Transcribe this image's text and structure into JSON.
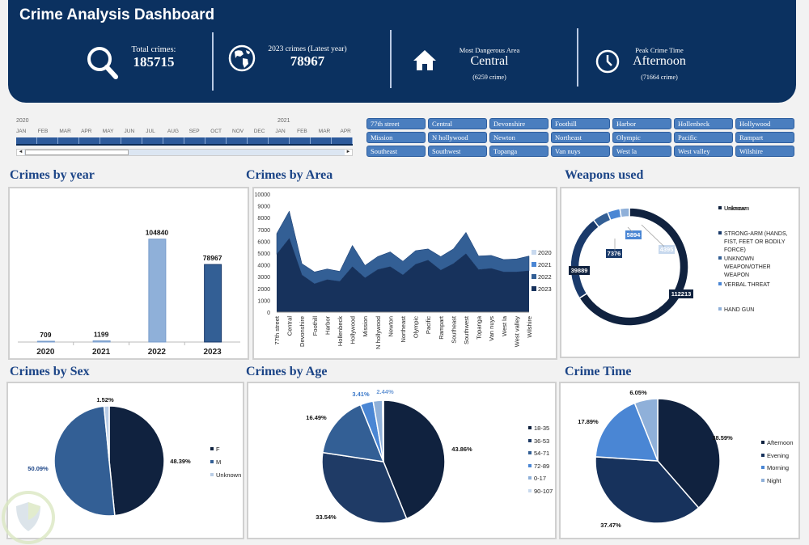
{
  "header": {
    "title": "Crime Analysis Dashboard",
    "kpis": [
      {
        "icon": "search-icon",
        "label": "Total crimes:",
        "value": "185715"
      },
      {
        "icon": "globe-icon",
        "label": "2023 crimes (Latest year)",
        "value": "78967"
      },
      {
        "icon": "home-icon",
        "label": "Most Dangerous Area",
        "value": "Central",
        "sub": "(6259 crime)"
      },
      {
        "icon": "clock-icon",
        "label": "Peak Crime Time",
        "value": "Afternoon",
        "sub": "(71664 crime)"
      }
    ]
  },
  "timeline": {
    "years": [
      "2020",
      "2021"
    ],
    "months": [
      "JAN",
      "FEB",
      "MAR",
      "APR",
      "MAY",
      "JUN",
      "JUL",
      "AUG",
      "SEP",
      "OCT",
      "NOV",
      "DEC",
      "JAN",
      "FEB",
      "MAR",
      "APR"
    ],
    "scroll_left": "◄",
    "scroll_right": "►"
  },
  "area_slicer": {
    "items": [
      "77th street",
      "Central",
      "Devonshire",
      "Foothill",
      "Harbor",
      "Hollenbeck",
      "Hollywood",
      "Mission",
      "N hollywood",
      "Newton",
      "Northeast",
      "Olympic",
      "Pacific",
      "Rampart",
      "Southeast",
      "Southwest",
      "Topanga",
      "Van nuys",
      "West la",
      "West valley",
      "Wilshire"
    ]
  },
  "sections": {
    "year": "Crimes by year",
    "area": "Crimes by Area",
    "weapons": "Weapons used",
    "sex": "Crimes by Sex",
    "age": "Crimes by Age",
    "time": "Crime Time"
  },
  "colors": {
    "header_bg": "#0b3160",
    "title": "#1c4587",
    "darkest": "#10223f",
    "dark": "#1a3a6b",
    "mid": "#335f95",
    "blue": "#4a86d4",
    "light": "#8fb0d9",
    "lighter": "#c8d9ee"
  },
  "chart_data": [
    {
      "id": "year",
      "type": "bar",
      "title": "Crimes by year",
      "categories": [
        "2020",
        "2021",
        "2022",
        "2023"
      ],
      "values": [
        709,
        1199,
        104840,
        78967
      ],
      "colors": [
        "#8fb0d9",
        "#8fb0d9",
        "#8fb0d9",
        "#335f95"
      ],
      "ylim": [
        0,
        140000
      ]
    },
    {
      "id": "area",
      "type": "area",
      "title": "Crimes by Area",
      "stacked": true,
      "categories": [
        "77th street",
        "Central",
        "Devonshire",
        "Foothill",
        "Harbor",
        "Hollenbeck",
        "Hollywood",
        "Mission",
        "N hollywood",
        "Newton",
        "Northeast",
        "Olympic",
        "Pacific",
        "Rampart",
        "Southeast",
        "Southwest",
        "Topanga",
        "Van nuys",
        "West la",
        "West valley",
        "Wilshire"
      ],
      "yticks": [
        0,
        1000,
        2000,
        3000,
        4000,
        5000,
        6000,
        7000,
        8000,
        9000,
        10000
      ],
      "ylim": [
        0,
        10000
      ],
      "series": [
        {
          "name": "2023",
          "color": "#17325c",
          "values": [
            4900,
            6250,
            3150,
            2400,
            2750,
            2600,
            3850,
            2900,
            3600,
            3850,
            3150,
            4050,
            4400,
            3550,
            4100,
            4950,
            3600,
            3700,
            3400,
            3400,
            3500
          ]
        },
        {
          "name": "2022",
          "color": "#335f95",
          "values": [
            1750,
            2300,
            950,
            1000,
            900,
            850,
            1800,
            1050,
            1100,
            1250,
            1150,
            1150,
            950,
            1150,
            1250,
            1800,
            1150,
            1100,
            1050,
            1100,
            1250
          ]
        },
        {
          "name": "2021",
          "color": "#4a86d4",
          "values": [
            30,
            40,
            20,
            20,
            20,
            20,
            30,
            20,
            20,
            20,
            20,
            20,
            20,
            20,
            20,
            30,
            20,
            20,
            20,
            20,
            20
          ]
        },
        {
          "name": "2020",
          "color": "#c8d9ee",
          "values": [
            20,
            30,
            10,
            10,
            10,
            10,
            20,
            10,
            10,
            10,
            10,
            10,
            10,
            10,
            10,
            20,
            10,
            10,
            10,
            10,
            10
          ]
        }
      ],
      "legend": [
        "2020",
        "2021",
        "2022",
        "2023"
      ],
      "legend_position": "right"
    },
    {
      "id": "weapons",
      "type": "pie",
      "donut": true,
      "title": "Weapons used",
      "labels": [
        "Unknown",
        "STRONG-ARM (HANDS, FIST, FEET OR BODILY FORCE)",
        "UNKNOWN WEAPON/OTHER WEAPON",
        "VERBAL THREAT",
        "HAND GUN"
      ],
      "values": [
        112213,
        39889,
        7376,
        5894,
        4395
      ],
      "colors": [
        "#10223f",
        "#1a3a6b",
        "#335f95",
        "#4a86d4",
        "#8fb0d9"
      ],
      "legend_position": "right"
    },
    {
      "id": "sex",
      "type": "pie",
      "title": "Crimes by Sex",
      "labels": [
        "F",
        "M",
        "Unknown"
      ],
      "values": [
        48.39,
        50.09,
        1.52
      ],
      "value_labels": [
        "48.39%",
        "50.09%",
        "1.52%"
      ],
      "colors": [
        "#10223f",
        "#335f95",
        "#b9cde6"
      ],
      "legend_position": "right"
    },
    {
      "id": "age",
      "type": "pie",
      "title": "Crimes by Age",
      "labels": [
        "18-35",
        "36-53",
        "54-71",
        "72-89",
        "0-17",
        "90-107"
      ],
      "values": [
        43.86,
        33.54,
        16.49,
        3.41,
        2.44,
        0.26
      ],
      "value_labels": [
        "43.86%",
        "33.54%",
        "16.49%",
        "3.41%",
        "2.44%",
        ""
      ],
      "colors": [
        "#10223f",
        "#1f3b66",
        "#335f95",
        "#4a86d4",
        "#8fb0d9",
        "#c8d9ee"
      ],
      "legend_position": "right"
    },
    {
      "id": "time",
      "type": "pie",
      "title": "Crime Time",
      "labels": [
        "Afternoon",
        "Evening",
        "Morning",
        "Night"
      ],
      "values": [
        38.59,
        37.47,
        17.89,
        6.05
      ],
      "value_labels": [
        "38.59%",
        "37.47%",
        "17.89%",
        "6.05%"
      ],
      "colors": [
        "#10223f",
        "#17325c",
        "#4a86d4",
        "#8fb0d9"
      ],
      "legend_position": "right"
    }
  ]
}
